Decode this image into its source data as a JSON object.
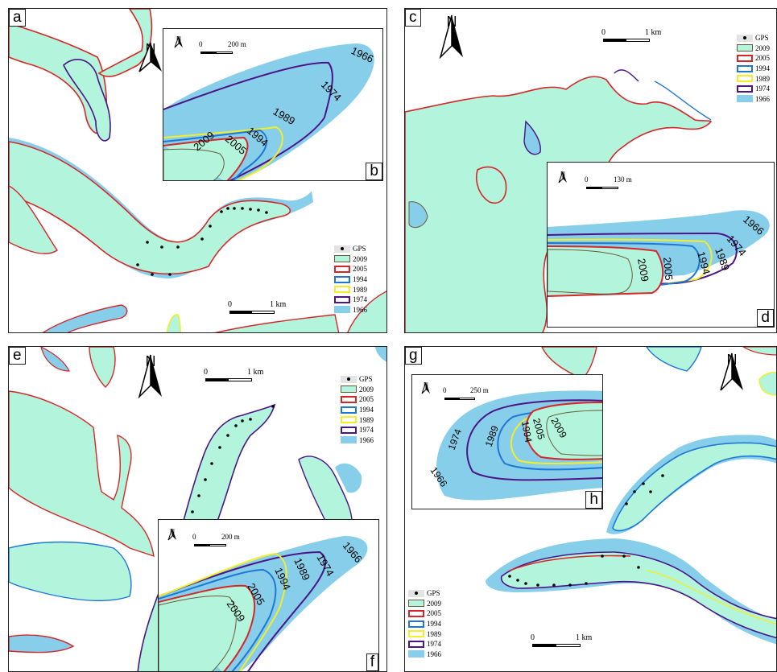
{
  "panels": {
    "a": "a",
    "b": "b",
    "c": "c",
    "d": "d",
    "e": "e",
    "f": "f",
    "g": "g",
    "h": "h"
  },
  "north": "N",
  "legend": {
    "gps": "GPS",
    "years": [
      "2009",
      "2005",
      "1994",
      "1989",
      "1974",
      "1966"
    ]
  },
  "colors": {
    "y2009": "#b3f5dc",
    "y2005": "#d62728",
    "y1994": "#1f77d4",
    "y1989": "#f2ee2a",
    "y1974": "#4b1487",
    "y1966": "#87ceeb",
    "outline": "#6b5a3a"
  },
  "scalebars": {
    "a": {
      "zero": "0",
      "end": "1 km"
    },
    "b": {
      "zero": "0",
      "end": "200 m"
    },
    "c": {
      "zero": "0",
      "end": "1 km"
    },
    "d": {
      "zero": "0",
      "end": "130 m"
    },
    "e": {
      "zero": "0",
      "end": "1 km"
    },
    "f": {
      "zero": "0",
      "end": "200 m"
    },
    "g": {
      "zero": "0",
      "end": "1 km"
    },
    "h": {
      "zero": "0",
      "end": "250 m"
    }
  },
  "inset_labels": {
    "b": [
      "1966",
      "1974",
      "1989",
      "1994",
      "2005",
      "2009"
    ],
    "d": [
      "1966",
      "1974",
      "1989",
      "1994",
      "2005",
      "2009"
    ],
    "f": [
      "1966",
      "1974",
      "1989",
      "1994",
      "2005",
      "2009"
    ],
    "h": [
      "1966",
      "1974",
      "1989",
      "1994",
      "2005",
      "2009"
    ]
  }
}
